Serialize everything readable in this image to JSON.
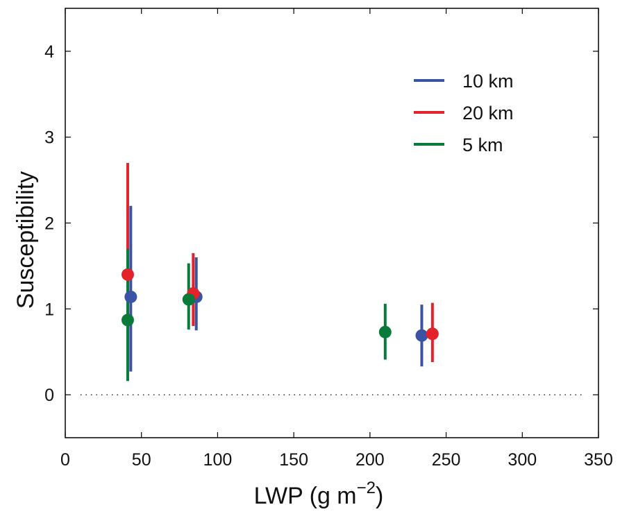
{
  "chart_data": {
    "type": "scatter",
    "title": "",
    "xlabel": "LWP (g m",
    "xlabel_sup": "−2",
    "xlabel_end": ")",
    "ylabel": "Susceptibility",
    "xlim": [
      0,
      350
    ],
    "ylim": [
      -0.5,
      4.5
    ],
    "xticks": [
      0,
      50,
      100,
      150,
      200,
      250,
      300,
      350
    ],
    "yticks": [
      0,
      1,
      2,
      3,
      4
    ],
    "grid": false,
    "legend_position": "top-right",
    "reference_line": {
      "y": 0,
      "x_range": [
        10,
        340
      ],
      "style": "dotted"
    },
    "series": [
      {
        "name": "10 km",
        "color": "#3a53a4",
        "points": [
          {
            "x": 43,
            "y": 1.14,
            "low": 0.27,
            "high": 2.2
          },
          {
            "x": 86,
            "y": 1.14,
            "low": 0.75,
            "high": 1.6
          },
          {
            "x": 234,
            "y": 0.69,
            "low": 0.33,
            "high": 1.05
          }
        ]
      },
      {
        "name": "20 km",
        "color": "#e3222b",
        "points": [
          {
            "x": 41,
            "y": 1.4,
            "low": 0.38,
            "high": 2.7
          },
          {
            "x": 84,
            "y": 1.18,
            "low": 0.8,
            "high": 1.65
          },
          {
            "x": 241,
            "y": 0.71,
            "low": 0.38,
            "high": 1.07
          }
        ]
      },
      {
        "name": "5 km",
        "color": "#0a7a3a",
        "points": [
          {
            "x": 41,
            "y": 0.87,
            "low": 0.16,
            "high": 1.7
          },
          {
            "x": 81,
            "y": 1.11,
            "low": 0.76,
            "high": 1.53
          },
          {
            "x": 210,
            "y": 0.73,
            "low": 0.41,
            "high": 1.06
          }
        ]
      }
    ]
  }
}
